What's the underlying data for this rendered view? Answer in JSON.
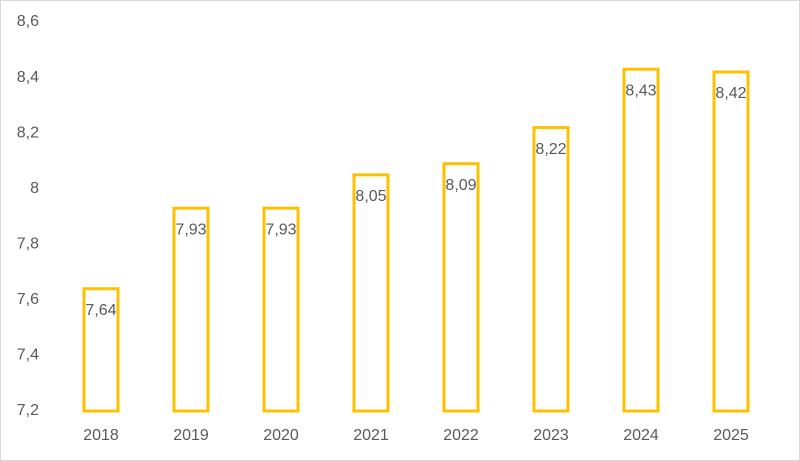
{
  "chart_data": {
    "type": "bar",
    "categories": [
      "2018",
      "2019",
      "2020",
      "2021",
      "2022",
      "2023",
      "2024",
      "2025"
    ],
    "values": [
      7.64,
      7.93,
      7.93,
      8.05,
      8.09,
      8.22,
      8.43,
      8.42
    ],
    "value_labels": [
      "7,64",
      "7,93",
      "7,93",
      "8,05",
      "8,09",
      "8,22",
      "8,43",
      "8,42"
    ],
    "color": "#ffc000",
    "ylim": [
      7.2,
      8.6
    ],
    "yticks": [
      {
        "value": 7.2,
        "label": "7,2"
      },
      {
        "value": 7.4,
        "label": "7,4"
      },
      {
        "value": 7.6,
        "label": "7,6"
      },
      {
        "value": 7.8,
        "label": "7,8"
      },
      8,
      {
        "value": 8.2,
        "label": "8,2"
      },
      {
        "value": 8.4,
        "label": "8,4"
      },
      {
        "value": 8.6,
        "label": "8,6"
      }
    ],
    "grid": false
  }
}
